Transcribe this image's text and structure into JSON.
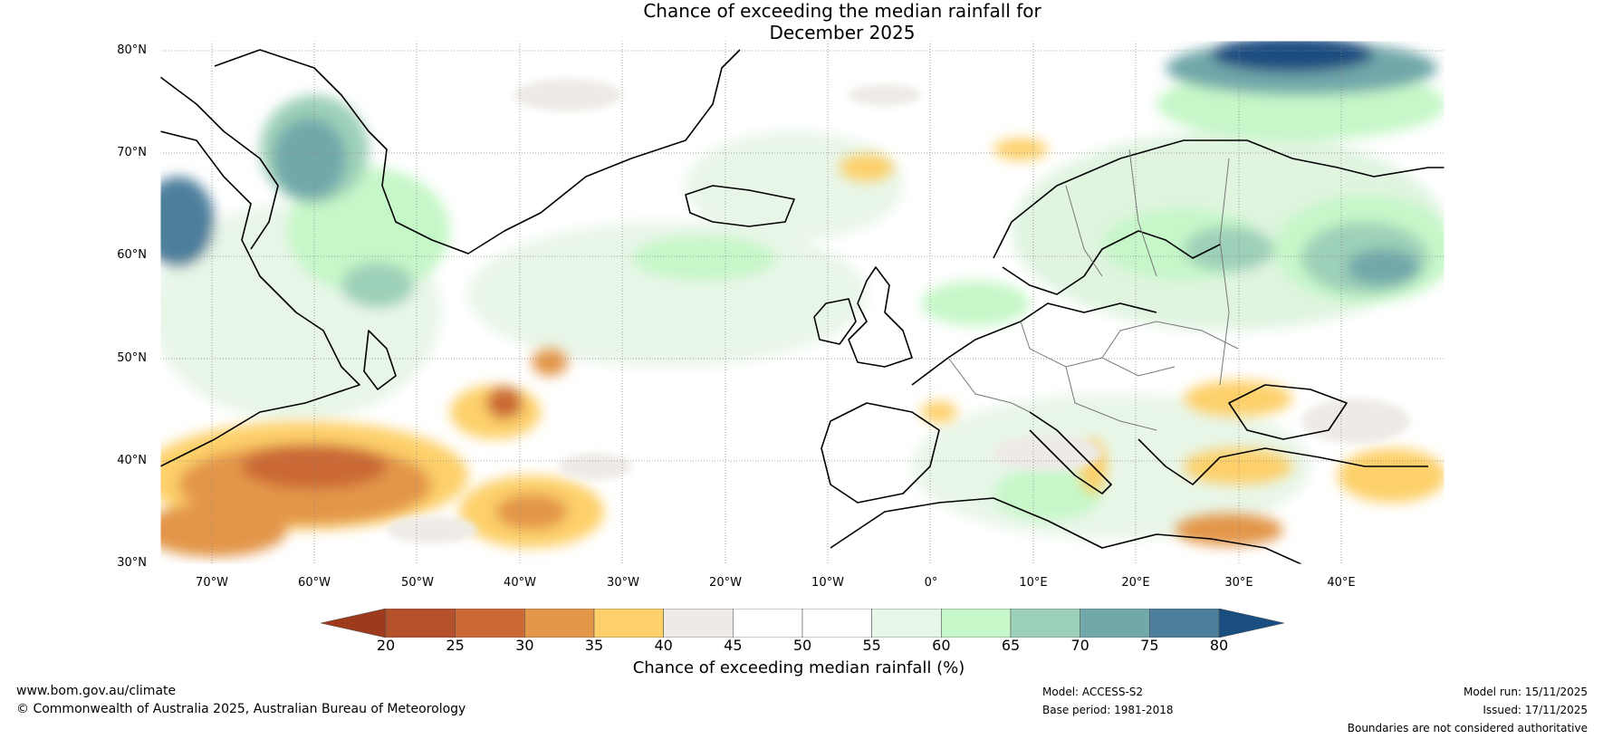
{
  "title": {
    "line1": "Chance of exceeding the median rainfall for",
    "line2": "December 2025"
  },
  "map": {
    "lon_range": [
      -75,
      50
    ],
    "lat_range": [
      30,
      81
    ],
    "lat_labels": [
      "80°N",
      "70°N",
      "60°N",
      "50°N",
      "40°N",
      "30°N"
    ],
    "lon_labels": [
      "70°W",
      "60°W",
      "50°W",
      "40°W",
      "30°W",
      "20°W",
      "10°W",
      "0°",
      "10°E",
      "20°E",
      "30°E",
      "40°E"
    ]
  },
  "colorbar": {
    "label": "Chance of exceeding median rainfall (%)",
    "ticks": [
      "20",
      "25",
      "30",
      "35",
      "40",
      "45",
      "50",
      "55",
      "60",
      "65",
      "70",
      "75",
      "80"
    ],
    "colors": [
      "#9e3a1c",
      "#b4502a",
      "#cb6934",
      "#e39648",
      "#fdd06a",
      "#eeebe6",
      "#ffffff",
      "#ffffff",
      "#e8f6e8",
      "#c6f7c8",
      "#9dd0b8",
      "#72a8aa",
      "#4d7f9c",
      "#1a4e80"
    ]
  },
  "footer": {
    "website": "www.bom.gov.au/climate",
    "copyright": "© Commonwealth of Australia 2025, Australian Bureau of Meteorology",
    "model": "Model: ACCESS-S2",
    "base_period": "Base period: 1981-2018",
    "model_run": "Model run: 15/11/2025",
    "issued": "Issued: 17/11/2025",
    "disclaimer": "Boundaries are not considered authoritative"
  }
}
